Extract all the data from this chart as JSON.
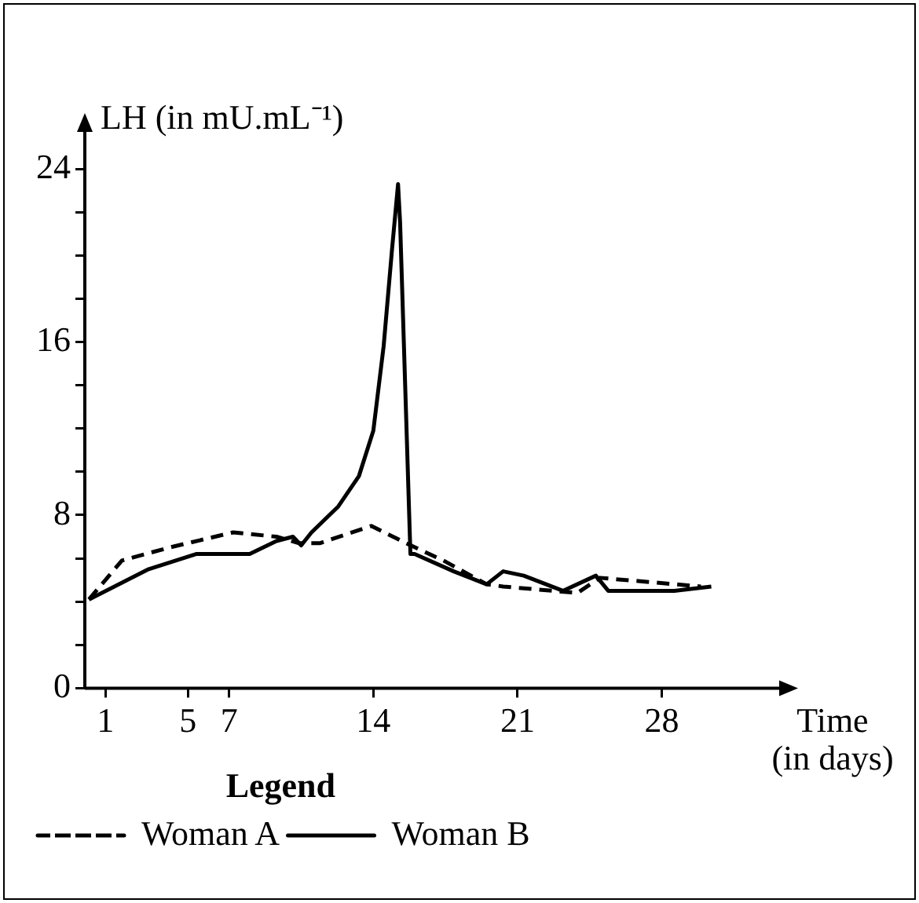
{
  "chart_data": {
    "type": "line",
    "xlabel": "Time\n(in days)",
    "ylabel": "LH (in mU.mL⁻¹)",
    "legend_title": "Legend",
    "legend": "bottom left",
    "grid": false,
    "marker": "none",
    "xlim": [
      0,
      34
    ],
    "xticks": [
      1,
      5,
      7,
      14,
      21,
      28
    ],
    "ylim": [
      0,
      26
    ],
    "yticks": [
      0,
      {
        "value": 2,
        "label": null
      },
      {
        "value": 4,
        "label": null
      },
      {
        "value": 6,
        "label": null
      },
      8,
      {
        "value": 10,
        "label": null
      },
      {
        "value": 12,
        "label": null
      },
      {
        "value": 14,
        "label": null
      },
      16,
      {
        "value": 18,
        "label": null
      },
      {
        "value": 20,
        "label": null
      },
      {
        "value": 22,
        "label": null
      },
      24
    ],
    "series": [
      {
        "name": "Woman A",
        "color": "#000000",
        "line_style": "dashed",
        "x": [
          0.2,
          1.8,
          4.1,
          7.2,
          9.3,
          10.4,
          11.4,
          13.9,
          15.6,
          17.4,
          19.5,
          20.3,
          23.9,
          25.0,
          29.9
        ],
        "values": [
          4.1,
          5.9,
          6.5,
          7.2,
          7.0,
          6.7,
          6.7,
          7.5,
          6.7,
          5.9,
          4.8,
          4.7,
          4.4,
          5.1,
          4.7
        ]
      },
      {
        "name": "Woman B",
        "color": "#000000",
        "line_style": "solid",
        "x": [
          0.2,
          3.1,
          5.4,
          8.0,
          9.3,
          10.1,
          10.5,
          11.0,
          12.3,
          13.3,
          14.0,
          14.5,
          14.9,
          15.2,
          15.3,
          15.8,
          16.0,
          17.9,
          19.5,
          20.3,
          21.3,
          23.2,
          24.8,
          25.4,
          28.6,
          30.4
        ],
        "values": [
          4.1,
          5.5,
          6.2,
          6.2,
          6.8,
          7.0,
          6.6,
          7.2,
          8.4,
          9.8,
          11.9,
          15.8,
          20.2,
          23.3,
          21.5,
          6.2,
          6.2,
          5.4,
          4.8,
          5.4,
          5.2,
          4.5,
          5.2,
          4.5,
          4.5,
          4.7
        ]
      }
    ]
  }
}
